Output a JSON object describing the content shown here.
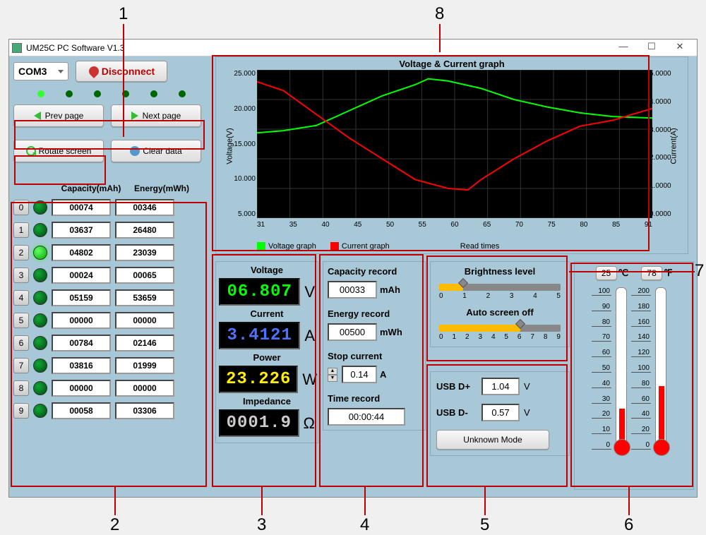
{
  "window": {
    "title": "UM25C PC Software V1.3"
  },
  "connection": {
    "port": "COM3",
    "disconnect_label": "Disconnect"
  },
  "leds": [
    "#3f3",
    "#060",
    "#060",
    "#060",
    "#060",
    "#060"
  ],
  "nav": {
    "prev_label": "Prev page",
    "next_label": "Next page",
    "rotate_label": "Rotate screen",
    "clear_label": "Clear data"
  },
  "records": {
    "capacity_header": "Capacity(mAh)",
    "energy_header": "Energy(mWh)",
    "rows": [
      {
        "idx": "0",
        "active": false,
        "capacity": "00074",
        "energy": "00346"
      },
      {
        "idx": "1",
        "active": false,
        "capacity": "03637",
        "energy": "26480"
      },
      {
        "idx": "2",
        "active": true,
        "capacity": "04802",
        "energy": "23039"
      },
      {
        "idx": "3",
        "active": false,
        "capacity": "00024",
        "energy": "00065"
      },
      {
        "idx": "4",
        "active": false,
        "capacity": "05159",
        "energy": "53659"
      },
      {
        "idx": "5",
        "active": false,
        "capacity": "00000",
        "energy": "00000"
      },
      {
        "idx": "6",
        "active": false,
        "capacity": "00784",
        "energy": "02146"
      },
      {
        "idx": "7",
        "active": false,
        "capacity": "03816",
        "energy": "01999"
      },
      {
        "idx": "8",
        "active": false,
        "capacity": "00000",
        "energy": "00000"
      },
      {
        "idx": "9",
        "active": false,
        "capacity": "00058",
        "energy": "03306"
      }
    ]
  },
  "meters": {
    "voltage": {
      "label": "Voltage",
      "value": "06.807",
      "unit": "V",
      "color": "#00ff00"
    },
    "current": {
      "label": "Current",
      "value": "3.4121",
      "unit": "A",
      "color": "#5070ff"
    },
    "power": {
      "label": "Power",
      "value": "23.226",
      "unit": "W",
      "color": "#ffee00"
    },
    "impedance": {
      "label": "Impedance",
      "value": "0001.9",
      "unit": "Ω",
      "color": "#cccccc"
    }
  },
  "values": {
    "capacity_record": {
      "label": "Capacity record",
      "value": "00033",
      "unit": "mAh"
    },
    "energy_record": {
      "label": "Energy record",
      "value": "00500",
      "unit": "mWh"
    },
    "stop_current": {
      "label": "Stop current",
      "value": "0.14",
      "unit": "A"
    },
    "time_record": {
      "label": "Time record",
      "value": "00:00:44"
    }
  },
  "brightness": {
    "label": "Brightness level",
    "value": 1,
    "max": 5,
    "ticks": [
      "0",
      "1",
      "2",
      "3",
      "4",
      "5"
    ]
  },
  "screenoff": {
    "label": "Auto screen off",
    "value": 6,
    "max": 9,
    "ticks": [
      "0",
      "1",
      "2",
      "3",
      "4",
      "5",
      "6",
      "7",
      "8",
      "9"
    ]
  },
  "usb": {
    "dp_label": "USB D+",
    "dp_value": "1.04",
    "dp_unit": "V",
    "dm_label": "USB D-",
    "dm_value": "0.57",
    "dm_unit": "V",
    "mode": "Unknown Mode"
  },
  "temp": {
    "c_value": "25",
    "c_unit": "℃",
    "c_min": 0,
    "c_max": 100,
    "c_fill_pct": 25,
    "c_ticks": [
      "100",
      "90",
      "80",
      "70",
      "60",
      "50",
      "40",
      "30",
      "20",
      "10",
      "0"
    ],
    "f_value": "78",
    "f_unit": "℉",
    "f_min": 0,
    "f_max": 200,
    "f_fill_pct": 39,
    "f_ticks": [
      "200",
      "180",
      "160",
      "140",
      "120",
      "100",
      "80",
      "60",
      "40",
      "20",
      "0"
    ]
  },
  "chart": {
    "title": "Voltage & Current graph",
    "y1_label": "Voltage(V)",
    "y2_label": "Current(A)",
    "x_label": "Read times",
    "legend_voltage": "Voltage graph",
    "legend_current": "Current graph",
    "x_range": [
      31,
      91
    ],
    "x_ticks": [
      "31",
      "35",
      "40",
      "45",
      "50",
      "55",
      "60",
      "65",
      "70",
      "75",
      "80",
      "85",
      "91"
    ],
    "y1_range": [
      5,
      25
    ],
    "y1_ticks": [
      "25.000",
      "20.000",
      "15.000",
      "10.000",
      "5.000"
    ],
    "y2_range": [
      0,
      5
    ],
    "y2_ticks": [
      "5.0000",
      "4.0000",
      "3.0000",
      "2.0000",
      "1.0000",
      "0.0000"
    ],
    "voltage_color": "#00ff00",
    "current_color": "#ff0000",
    "bg_color": "#000000",
    "grid_color": "#333333",
    "voltage_series": [
      [
        31,
        16.5
      ],
      [
        35,
        16.8
      ],
      [
        40,
        17.5
      ],
      [
        45,
        19.5
      ],
      [
        50,
        21.5
      ],
      [
        55,
        23.0
      ],
      [
        57,
        23.8
      ],
      [
        60,
        23.5
      ],
      [
        65,
        22.5
      ],
      [
        70,
        21.0
      ],
      [
        75,
        20.0
      ],
      [
        80,
        19.2
      ],
      [
        85,
        18.7
      ],
      [
        91,
        18.5
      ]
    ],
    "current_series": [
      [
        31,
        4.6
      ],
      [
        35,
        4.3
      ],
      [
        40,
        3.5
      ],
      [
        45,
        2.7
      ],
      [
        50,
        2.0
      ],
      [
        55,
        1.3
      ],
      [
        60,
        1.0
      ],
      [
        63,
        0.95
      ],
      [
        65,
        1.3
      ],
      [
        70,
        2.0
      ],
      [
        75,
        2.6
      ],
      [
        80,
        3.1
      ],
      [
        85,
        3.3
      ],
      [
        91,
        3.7
      ]
    ]
  },
  "annotations": {
    "1": "1",
    "2": "2",
    "3": "3",
    "4": "4",
    "5": "5",
    "6": "6",
    "7": "7",
    "8": "8"
  }
}
